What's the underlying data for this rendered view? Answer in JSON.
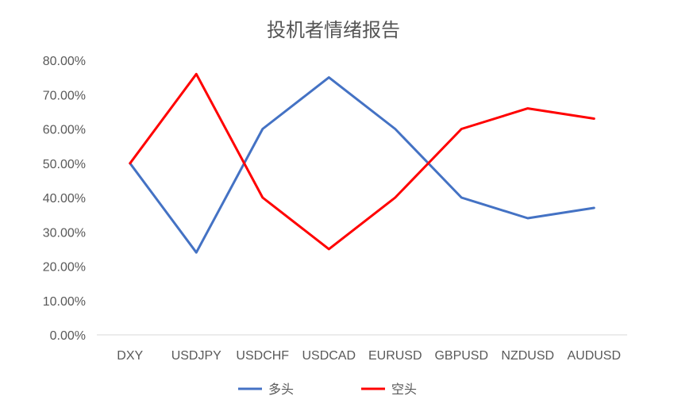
{
  "chart_data": {
    "type": "line",
    "title": "投机者情绪报告",
    "xlabel": "",
    "ylabel": "",
    "categories": [
      "DXY",
      "USDJPY",
      "USDCHF",
      "USDCAD",
      "EURUSD",
      "GBPUSD",
      "NZDUSD",
      "AUDUSD"
    ],
    "y_ticks": [
      "0.00%",
      "10.00%",
      "20.00%",
      "30.00%",
      "40.00%",
      "50.00%",
      "60.00%",
      "70.00%",
      "80.00%"
    ],
    "ylim": [
      0,
      0.8
    ],
    "grid": false,
    "legend_position": "bottom",
    "series": [
      {
        "name": "多头",
        "color": "#4472C4",
        "values": [
          0.5,
          0.24,
          0.6,
          0.75,
          0.6,
          0.4,
          0.34,
          0.37
        ]
      },
      {
        "name": "空头",
        "color": "#FF0000",
        "values": [
          0.5,
          0.76,
          0.4,
          0.25,
          0.4,
          0.6,
          0.66,
          0.63
        ]
      }
    ]
  }
}
